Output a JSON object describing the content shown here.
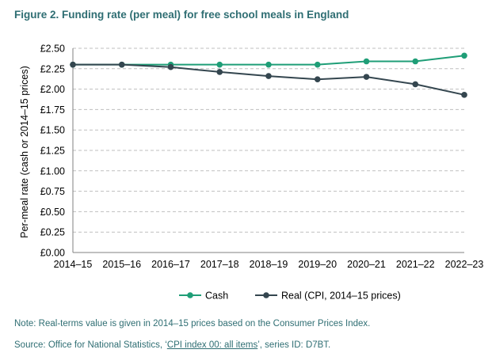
{
  "chart_data": {
    "type": "line",
    "title": "Figure 2. Funding rate (per meal) for free school meals in England",
    "xlabel": "",
    "ylabel": "Per-meal rate (cash or 2014–15 prices)",
    "categories": [
      "2014–15",
      "2015–16",
      "2016–17",
      "2017–18",
      "2018–19",
      "2019–20",
      "2020–21",
      "2021–22",
      "2022–23"
    ],
    "ylim": [
      0,
      2.5
    ],
    "yticks": [
      "£0.00",
      "£0.25",
      "£0.50",
      "£0.75",
      "£1.00",
      "£1.25",
      "£1.50",
      "£1.75",
      "£2.00",
      "£2.25",
      "£2.50"
    ],
    "grid": true,
    "legend_position": "bottom",
    "series": [
      {
        "name": "Cash",
        "color": "#1f9e77",
        "values": [
          2.3,
          2.3,
          2.3,
          2.3,
          2.3,
          2.3,
          2.34,
          2.34,
          2.41
        ]
      },
      {
        "name": "Real (CPI, 2014–15 prices)",
        "color": "#34464f",
        "values": [
          2.3,
          2.3,
          2.27,
          2.21,
          2.16,
          2.12,
          2.15,
          2.06,
          1.93
        ]
      }
    ]
  },
  "note": "Note: Real-terms value is given in 2014–15 prices based on the Consumer Prices Index.",
  "source": {
    "prefix": "Source: Office for National Statistics, ‘",
    "link": "CPI index 00: all items",
    "suffix": "’, series ID: D7BT."
  }
}
